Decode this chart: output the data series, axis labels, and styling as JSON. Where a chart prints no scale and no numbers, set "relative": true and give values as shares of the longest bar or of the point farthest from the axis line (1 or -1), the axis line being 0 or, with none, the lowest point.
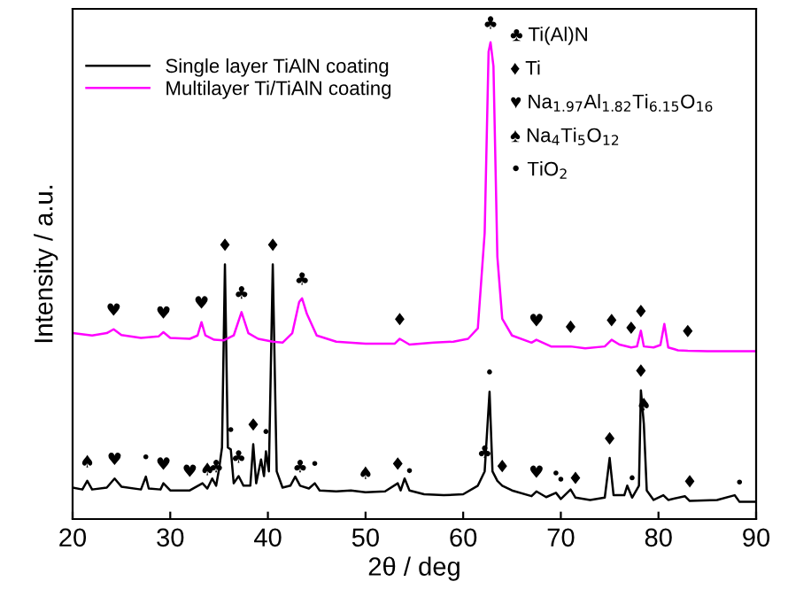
{
  "chart_data": {
    "type": "line",
    "relative": true,
    "xlabel": "2θ / deg",
    "ylabel": "Intensity / a.u.",
    "xlim": [
      20,
      90
    ],
    "xticks": [
      20,
      30,
      40,
      50,
      60,
      70,
      80,
      90
    ],
    "tick_labels": "x",
    "grid": false,
    "legend": "top left",
    "marker": "none",
    "line_style": "solid",
    "series": [
      {
        "name": "Single layer TiAlN coating",
        "color": "#000000",
        "x": [
          20,
          21,
          21.5,
          22,
          23.5,
          24.3,
          25,
          27,
          27.5,
          27.8,
          29,
          29.3,
          30,
          32,
          33.3,
          33.8,
          34.3,
          34.7,
          35.0,
          35.3,
          35.6,
          35.9,
          36.2,
          36.5,
          37.0,
          37.5,
          38.2,
          38.5,
          38.8,
          39.3,
          39.6,
          39.8,
          40.1,
          40.5,
          40.9,
          41.5,
          42.3,
          42.8,
          43.3,
          44.2,
          44.8,
          45.3,
          47,
          48.5,
          50,
          52,
          53.3,
          53.6,
          54,
          54.5,
          56,
          58,
          60,
          61.5,
          62.2,
          62.7,
          63.0,
          63.5,
          64,
          65,
          67,
          67.5,
          68.5,
          69.5,
          70,
          71,
          71.5,
          73,
          74.5,
          75,
          75.4,
          76.5,
          76.8,
          77.3,
          78.0,
          78.2,
          78.5,
          78.8,
          79.5,
          80.5,
          81,
          82.7,
          83.2,
          86,
          87.8,
          88.3,
          90
        ],
        "values": [
          0.066,
          0.062,
          0.08,
          0.062,
          0.066,
          0.085,
          0.068,
          0.062,
          0.089,
          0.064,
          0.062,
          0.075,
          0.06,
          0.06,
          0.075,
          0.064,
          0.085,
          0.07,
          0.105,
          0.15,
          0.534,
          0.15,
          0.146,
          0.075,
          0.09,
          0.07,
          0.07,
          0.157,
          0.075,
          0.125,
          0.09,
          0.142,
          0.1,
          0.534,
          0.1,
          0.066,
          0.07,
          0.089,
          0.07,
          0.064,
          0.075,
          0.06,
          0.058,
          0.06,
          0.056,
          0.058,
          0.075,
          0.06,
          0.085,
          0.06,
          0.052,
          0.05,
          0.052,
          0.07,
          0.1,
          0.267,
          0.1,
          0.08,
          0.07,
          0.06,
          0.048,
          0.058,
          0.046,
          0.055,
          0.042,
          0.062,
          0.045,
          0.04,
          0.045,
          0.128,
          0.05,
          0.05,
          0.07,
          0.045,
          0.07,
          0.27,
          0.2,
          0.06,
          0.04,
          0.05,
          0.04,
          0.048,
          0.038,
          0.04,
          0.05,
          0.036,
          0.036
        ]
      },
      {
        "name": "Multilayer Ti/TiAlN coating",
        "color": "#ff00ff",
        "x": [
          20,
          22,
          23.5,
          24.2,
          25,
          27,
          28.8,
          29.3,
          30,
          32,
          32.8,
          33.2,
          33.6,
          34.5,
          35.5,
          36.5,
          37.3,
          38,
          39,
          40.5,
          41.5,
          42.5,
          43.2,
          43.5,
          44,
          45,
          47,
          50,
          53,
          53.5,
          54.5,
          57,
          59,
          60.5,
          61.5,
          62.2,
          62.6,
          62.8,
          63.1,
          63.5,
          64,
          65,
          67,
          67.5,
          69,
          71,
          72.5,
          74.5,
          75.2,
          76,
          77.2,
          77.8,
          78.2,
          78.5,
          79.5,
          80.2,
          80.6,
          81,
          82,
          83,
          85,
          90
        ],
        "values": [
          0.39,
          0.385,
          0.39,
          0.398,
          0.386,
          0.38,
          0.383,
          0.392,
          0.38,
          0.378,
          0.385,
          0.413,
          0.385,
          0.376,
          0.375,
          0.385,
          0.434,
          0.39,
          0.378,
          0.372,
          0.37,
          0.39,
          0.455,
          0.463,
          0.43,
          0.385,
          0.372,
          0.368,
          0.368,
          0.378,
          0.366,
          0.37,
          0.372,
          0.378,
          0.4,
          0.6,
          0.98,
          1.0,
          0.95,
          0.55,
          0.42,
          0.385,
          0.37,
          0.376,
          0.362,
          0.362,
          0.358,
          0.362,
          0.376,
          0.366,
          0.36,
          0.362,
          0.395,
          0.362,
          0.36,
          0.365,
          0.409,
          0.36,
          0.354,
          0.353,
          0.352,
          0.352
        ]
      }
    ],
    "annotations": [
      "♣ Ti(Al)N",
      "♦ Ti",
      "♥ Na$_{1.97}$Al$_{1.82}$Ti$_{6.15}$O$_{16}$",
      "♠ Na$_{4}$Ti$_{5}$O$_{12}$",
      "• TiO$_{2}$",
      {
        "text": "♥",
        "x": 24.2,
        "y": 0.398
      },
      {
        "text": "♥",
        "x": 29.3,
        "y": 0.392
      },
      {
        "text": "♥",
        "x": 33.2,
        "y": 0.413
      },
      {
        "text": "♦",
        "x": 35.6,
        "y": 0.534
      },
      {
        "text": "♣",
        "x": 37.3,
        "y": 0.434
      },
      {
        "text": "♦",
        "x": 40.5,
        "y": 0.534
      },
      {
        "text": "♣",
        "x": 43.5,
        "y": 0.463
      },
      {
        "text": "♦",
        "x": 53.5,
        "y": 0.378
      },
      {
        "text": "♣",
        "x": 62.8,
        "y": 1.0
      },
      {
        "text": "♥",
        "x": 67.5,
        "y": 0.376
      },
      {
        "text": "♦",
        "x": 71,
        "y": 0.362
      },
      {
        "text": "♦",
        "x": 75.2,
        "y": 0.376
      },
      {
        "text": "♦",
        "x": 77.2,
        "y": 0.36
      },
      {
        "text": "♦",
        "x": 78.2,
        "y": 0.395
      },
      {
        "text": "♦",
        "x": 83,
        "y": 0.353
      },
      {
        "text": "♠",
        "x": 21.5,
        "y": 0.08
      },
      {
        "text": "♥",
        "x": 24.3,
        "y": 0.085
      },
      {
        "text": "•",
        "x": 27.5,
        "y": 0.089
      },
      {
        "text": "♥",
        "x": 29.3,
        "y": 0.075
      },
      {
        "text": "♥",
        "x": 32,
        "y": 0.06
      },
      {
        "text": "♠",
        "x": 33.8,
        "y": 0.064
      },
      {
        "text": "♣",
        "x": 34.7,
        "y": 0.07
      },
      {
        "text": "•",
        "x": 36.2,
        "y": 0.146
      },
      {
        "text": "♣",
        "x": 37.0,
        "y": 0.09
      },
      {
        "text": "♦",
        "x": 38.5,
        "y": 0.157
      },
      {
        "text": "•",
        "x": 39.8,
        "y": 0.142
      },
      {
        "text": "♣",
        "x": 43.3,
        "y": 0.07
      },
      {
        "text": "•",
        "x": 44.8,
        "y": 0.075
      },
      {
        "text": "♠",
        "x": 50,
        "y": 0.056
      },
      {
        "text": "♦",
        "x": 53.3,
        "y": 0.075
      },
      {
        "text": "•",
        "x": 54.5,
        "y": 0.06
      },
      {
        "text": "•",
        "x": 62.7,
        "y": 0.267
      },
      {
        "text": "♣",
        "x": 62.2,
        "y": 0.1
      },
      {
        "text": "♦",
        "x": 64,
        "y": 0.07
      },
      {
        "text": "♥",
        "x": 67.5,
        "y": 0.058
      },
      {
        "text": "•",
        "x": 69.5,
        "y": 0.055
      },
      {
        "text": "•",
        "x": 70,
        "y": 0.042
      },
      {
        "text": "♦",
        "x": 71.5,
        "y": 0.045
      },
      {
        "text": "♦",
        "x": 75,
        "y": 0.128
      },
      {
        "text": "•",
        "x": 77.3,
        "y": 0.045
      },
      {
        "text": "♦",
        "x": 78.2,
        "y": 0.27
      },
      {
        "text": "♠",
        "x": 78.5,
        "y": 0.2
      },
      {
        "text": "♦",
        "x": 83.2,
        "y": 0.038
      },
      {
        "text": "•",
        "x": 88.3,
        "y": 0.036
      }
    ]
  }
}
